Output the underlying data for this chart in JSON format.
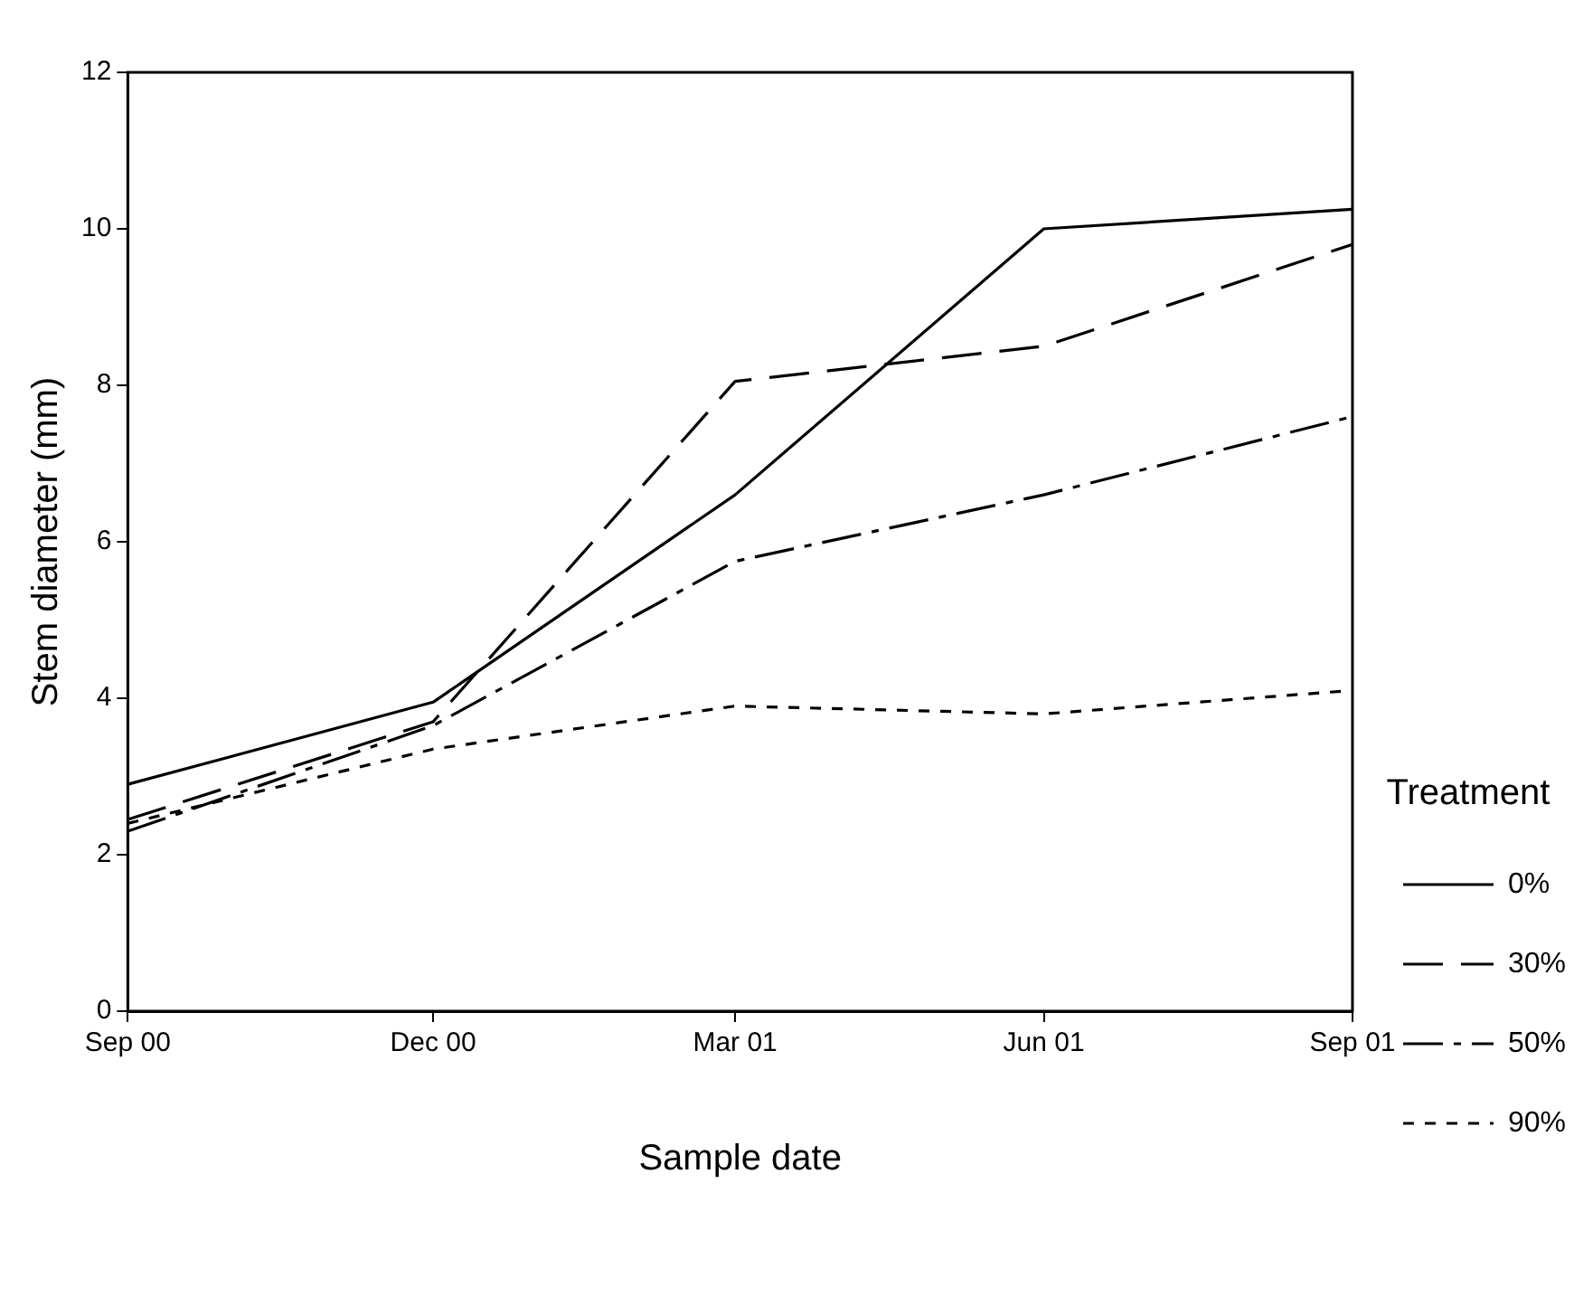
{
  "chart_data": {
    "type": "line",
    "xlabel": "Sample date",
    "ylabel": "Stem diameter (mm)",
    "legend_title": "Treatment",
    "legend": "right",
    "x": [
      "2000-09",
      "2000-12",
      "2001-03",
      "2001-06",
      "2001-09"
    ],
    "xlim": [
      "2000-09",
      "2001-09"
    ],
    "xticks": [
      {
        "value": "2000-09",
        "label": "Sep 00"
      },
      {
        "value": "2000-12",
        "label": "Dec 00"
      },
      {
        "value": "2001-03",
        "label": "Mar 01"
      },
      {
        "value": "2001-06",
        "label": "Jun 01"
      },
      {
        "value": "2001-09",
        "label": "Sep 01"
      }
    ],
    "ylim": [
      0,
      12
    ],
    "yticks": [
      0,
      2,
      4,
      6,
      8,
      10,
      12
    ],
    "grid": false,
    "marker": "none",
    "series": [
      {
        "name": "0%",
        "color": "#000000",
        "line_style": "solid",
        "values": [
          2.9,
          3.95,
          6.6,
          10.0,
          10.25
        ]
      },
      {
        "name": "30%",
        "color": "#000000",
        "line_style": "dashed",
        "values": [
          2.45,
          3.7,
          8.05,
          8.5,
          9.8
        ]
      },
      {
        "name": "50%",
        "color": "#000000",
        "line_style": "dashdot",
        "values": [
          2.3,
          3.65,
          5.75,
          6.6,
          7.6
        ]
      },
      {
        "name": "90%",
        "color": "#000000",
        "line_style": "dotted",
        "values": [
          2.4,
          3.35,
          3.9,
          3.8,
          4.1
        ]
      }
    ]
  }
}
